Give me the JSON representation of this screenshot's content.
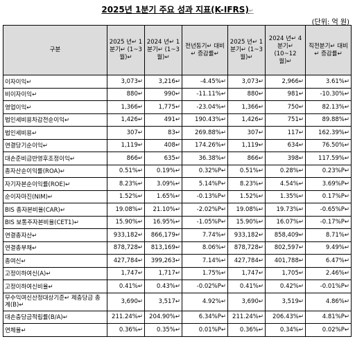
{
  "title": "2025년 1분기 주요 성과 지표(K-IFRS)",
  "unit": "(단위: 억 원)",
  "para_mark": "↵",
  "headers": [
    "구분",
    "2025 년↵ 1 분기↵ (1~3 월)↵",
    "2024 년↵ 1 분기↵ (1~3 월)↵",
    "전년동기↵ 대비↵ 증감률↵",
    "2025 년↵ 1 분기↵ (1~3 월)↵",
    "2024 년↵ 4 분기↵ (10~12 월)↵",
    "직전분기↵ 대비↵ 증감률↵"
  ],
  "rows": [
    {
      "label": "이자이익↵",
      "values": [
        "3,073↵",
        "3,216↵",
        "-4.45%↵",
        "3,073↵",
        "2,966↵",
        "3.61%↵"
      ]
    },
    {
      "label": "비이자이익↵",
      "values": [
        "880↵",
        "990↵",
        "-11.11%↵",
        "880↵",
        "981↵",
        "-10.30%↵"
      ]
    },
    {
      "label": "영업이익↵",
      "values": [
        "1,366↵",
        "1,775↵",
        "-23.04%↵",
        "1,366↵",
        "750↵",
        "82.13%↵"
      ]
    },
    {
      "label": "법인세비용차감전순이익↵",
      "values": [
        "1,426↵",
        "491↵",
        "190.43%↵",
        "1,426↵",
        "751↵",
        "89.88%↵"
      ]
    },
    {
      "label": "법인세비용↵",
      "values": [
        "307↵",
        "83↵",
        "269.88%↵",
        "307↵",
        "117↵",
        "162.39%↵"
      ]
    },
    {
      "label": "연결당기순이익↵",
      "values": [
        "1,119↵",
        "408↵",
        "174.26%↵",
        "1,119↵",
        "634↵",
        "76.50%↵"
      ]
    },
    {
      "label": "대손준비금반영후조정이익↵",
      "values": [
        "866↵",
        "635↵",
        "36.38%↵",
        "866↵",
        "398↵",
        "117.59%↵"
      ]
    },
    {
      "label": "총자산순이익률(ROA)↵",
      "values": [
        "0.51%↵",
        "0.19%↵",
        "0.32%P↵",
        "0.51%↵",
        "0.28%↵",
        "0.23%P↵"
      ]
    },
    {
      "label": "자기자본순이익률(ROE)↵",
      "values": [
        "8.23%↵",
        "3.09%↵",
        "5.14%P↵",
        "8.23%↵",
        "4.54%↵",
        "3.69%P↵"
      ]
    },
    {
      "label": "순이자마진(NIM)↵",
      "values": [
        "1.52%↵",
        "1.65%↵",
        "-0.13%P↵",
        "1.52%↵",
        "1.35%↵",
        "0.17%P↵"
      ]
    },
    {
      "label": "BIS 총자본비율(CAR)↵",
      "values": [
        "19.08%↵",
        "21.10%↵",
        "-2.02%P↵",
        "19.08%↵",
        "19.73%↵",
        "-0.65%P↵"
      ]
    },
    {
      "label": "BIS 보통주자본비율(CET1)↵",
      "values": [
        "15.90%↵",
        "16.95%↵",
        "-1.05%P↵",
        "15.90%↵",
        "16.07%↵",
        "-0.17%P↵"
      ]
    },
    {
      "label": "연결총자산↵",
      "values": [
        "933,182↵",
        "866,179↵",
        "7.74%↵",
        "933,182↵",
        "858,409↵",
        "8.71%↵"
      ]
    },
    {
      "label": "연결총부채↵",
      "values": [
        "878,728↵",
        "813,169↵",
        "8.06%↵",
        "878,728↵",
        "802,597↵",
        "9.49%↵"
      ]
    },
    {
      "label": "총여신↵",
      "values": [
        "427,784↵",
        "399,263↵",
        "7.14%↵",
        "427,784↵",
        "401,788↵",
        "6.47%↵"
      ]
    },
    {
      "label": "고정이하여신(A)↵",
      "values": [
        "1,747↵",
        "1,717↵",
        "1.75%↵",
        "1,747↵",
        "1,705↵",
        "2.46%↵"
      ]
    },
    {
      "label": "고정이하여신비율↵",
      "values": [
        "0.41%↵",
        "0.43%↵",
        "-0.02%P↵",
        "0.41%↵",
        "0.42%↵",
        "-0.01%P↵"
      ]
    },
    {
      "label": "무수익여신산정대상기준↵ 제충당금 총계(B)↵",
      "values": [
        "3,690↵",
        "3,517↵",
        "4.92%↵",
        "3,690↵",
        "3,519↵",
        "4.86%↵"
      ],
      "tall": true
    },
    {
      "label": "대손충당금적립률(B/A)↵",
      "values": [
        "211.24%↵",
        "204.90%↵",
        "6.34%P↵",
        "211.24%↵",
        "206.43%↵",
        "4.81%P↵"
      ]
    },
    {
      "label": "연체율↵",
      "values": [
        "0.36%↵",
        "0.35%↵",
        "0.01%P↵",
        "0.36%↵",
        "0.34%↵",
        "0.02%P↵"
      ]
    }
  ]
}
